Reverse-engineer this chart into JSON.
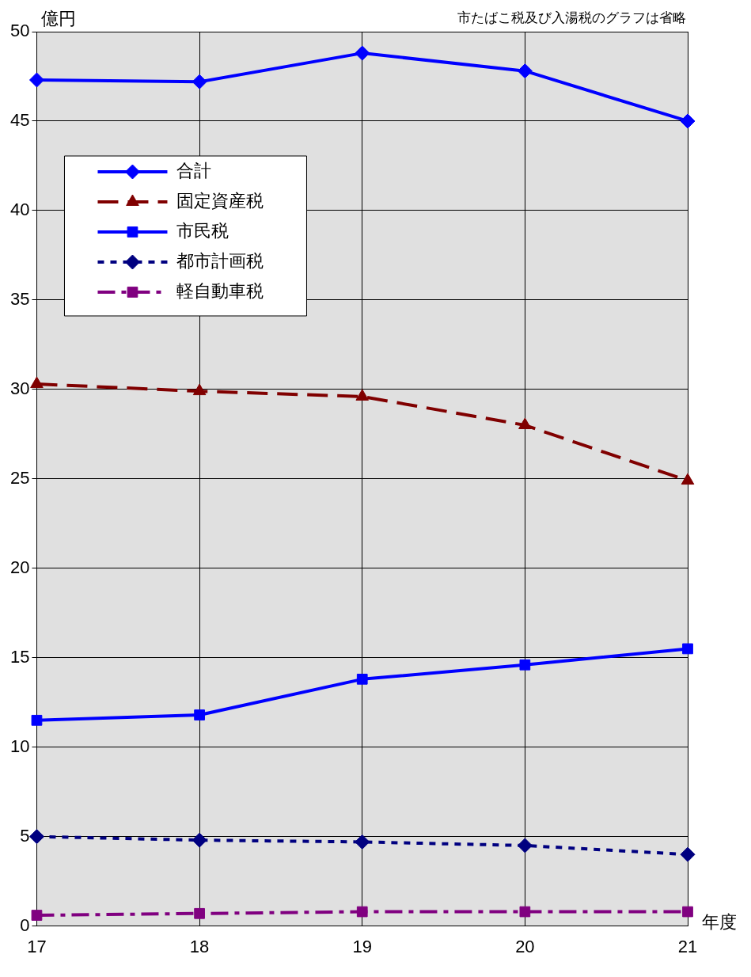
{
  "chart_data": {
    "type": "line",
    "ylabel": "億円",
    "xlabel": "年度",
    "annotations": [
      "市たばこ税及び入湯税のグラフは省略"
    ],
    "categories": [
      "17",
      "18",
      "19",
      "20",
      "21"
    ],
    "series": [
      {
        "name": "合計",
        "color": "#0000ff",
        "marker": "diamond",
        "line_style": "solid",
        "values": [
          47.3,
          47.2,
          48.8,
          47.8,
          45.0
        ]
      },
      {
        "name": "固定資産税",
        "color": "#800000",
        "marker": "triangle",
        "line_style": "dashed",
        "values": [
          30.3,
          29.9,
          29.6,
          28.0,
          24.9
        ]
      },
      {
        "name": "市民税",
        "color": "#0000ff",
        "marker": "square",
        "line_style": "solid",
        "values": [
          11.5,
          11.8,
          13.8,
          14.6,
          15.5
        ]
      },
      {
        "name": "都市計画税",
        "color": "#000080",
        "marker": "diamond",
        "line_style": "dotted",
        "values": [
          5.0,
          4.8,
          4.7,
          4.5,
          4.0
        ]
      },
      {
        "name": "軽自動車税",
        "color": "#800080",
        "marker": "square",
        "line_style": "dashdot",
        "values": [
          0.6,
          0.7,
          0.8,
          0.8,
          0.8
        ]
      }
    ],
    "ylim": [
      0,
      50
    ],
    "yticks": [
      0,
      5,
      10,
      15,
      20,
      25,
      30,
      35,
      40,
      45,
      50
    ],
    "grid": true,
    "legend": "top left"
  }
}
